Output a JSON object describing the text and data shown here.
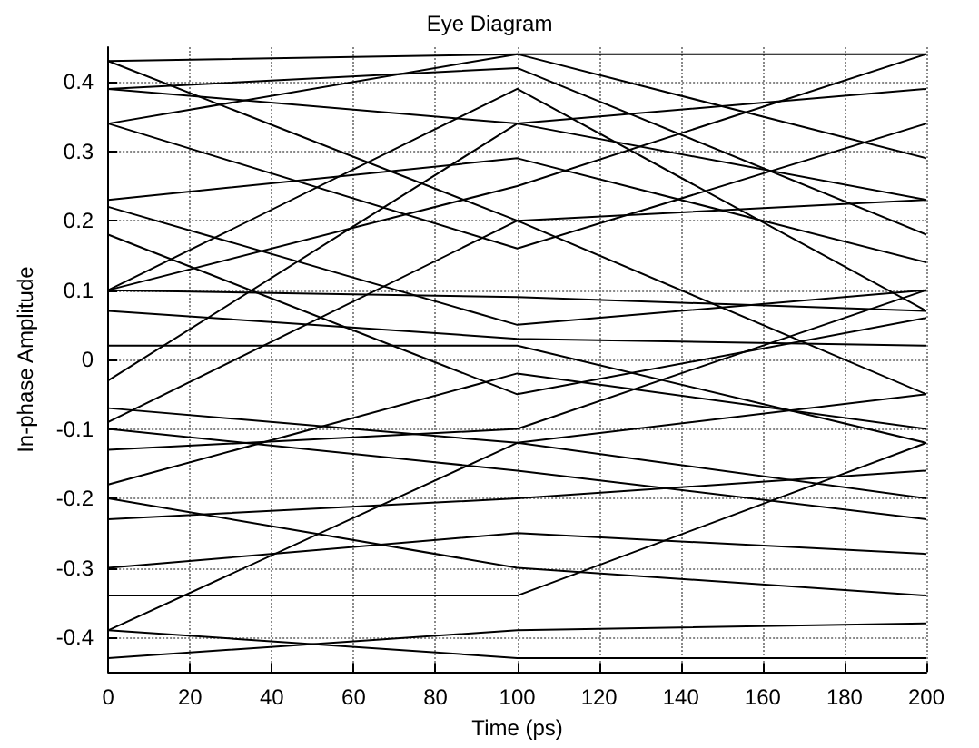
{
  "chart_data": {
    "type": "line",
    "title": "Eye Diagram",
    "xlabel": "Time (ps)",
    "ylabel": "In-phase Amplitude",
    "x": [
      0,
      100,
      200
    ],
    "xlim": [
      0,
      200
    ],
    "xticks": [
      0,
      20,
      40,
      60,
      80,
      100,
      120,
      140,
      160,
      180,
      200
    ],
    "ylim": [
      -0.45,
      0.45
    ],
    "yticks": [
      -0.4,
      -0.3,
      -0.2,
      -0.1,
      0,
      0.1,
      0.2,
      0.3,
      0.4
    ],
    "grid": true,
    "marker": "none",
    "line_style": "solid",
    "series": [
      {
        "color": "#000000",
        "values": [
          0.43,
          0.44,
          0.44
        ]
      },
      {
        "color": "#000000",
        "values": [
          0.43,
          0.2,
          0.23
        ]
      },
      {
        "color": "#000000",
        "values": [
          0.39,
          0.34,
          0.39
        ]
      },
      {
        "color": "#000000",
        "values": [
          0.39,
          0.42,
          0.18
        ]
      },
      {
        "color": "#000000",
        "values": [
          0.34,
          0.16,
          0.34
        ]
      },
      {
        "color": "#000000",
        "values": [
          0.34,
          0.44,
          0.29
        ]
      },
      {
        "color": "#000000",
        "values": [
          0.23,
          0.29,
          0.14
        ]
      },
      {
        "color": "#000000",
        "values": [
          0.22,
          0.05,
          0.1
        ]
      },
      {
        "color": "#000000",
        "values": [
          0.18,
          -0.05,
          0.06
        ]
      },
      {
        "color": "#000000",
        "values": [
          0.1,
          0.25,
          0.44
        ]
      },
      {
        "color": "#000000",
        "values": [
          0.1,
          0.39,
          0.07
        ]
      },
      {
        "color": "#000000",
        "values": [
          0.1,
          0.09,
          0.07
        ]
      },
      {
        "color": "#000000",
        "values": [
          0.07,
          0.03,
          0.02
        ]
      },
      {
        "color": "#000000",
        "values": [
          0.02,
          0.02,
          -0.12
        ]
      },
      {
        "color": "#000000",
        "values": [
          -0.03,
          0.34,
          0.23
        ]
      },
      {
        "color": "#000000",
        "values": [
          -0.07,
          -0.12,
          -0.2
        ]
      },
      {
        "color": "#000000",
        "values": [
          -0.09,
          0.2,
          -0.05
        ]
      },
      {
        "color": "#000000",
        "values": [
          -0.1,
          -0.16,
          -0.23
        ]
      },
      {
        "color": "#000000",
        "values": [
          -0.13,
          -0.1,
          0.1
        ]
      },
      {
        "color": "#000000",
        "values": [
          -0.18,
          -0.02,
          -0.1
        ]
      },
      {
        "color": "#000000",
        "values": [
          -0.2,
          -0.3,
          -0.34
        ]
      },
      {
        "color": "#000000",
        "values": [
          -0.23,
          -0.2,
          -0.16
        ]
      },
      {
        "color": "#000000",
        "values": [
          -0.3,
          -0.25,
          -0.28
        ]
      },
      {
        "color": "#000000",
        "values": [
          -0.34,
          -0.34,
          -0.12
        ]
      },
      {
        "color": "#000000",
        "values": [
          -0.39,
          -0.43,
          -0.43
        ]
      },
      {
        "color": "#000000",
        "values": [
          -0.39,
          -0.12,
          -0.05
        ]
      },
      {
        "color": "#000000",
        "values": [
          -0.43,
          -0.39,
          -0.38
        ]
      }
    ]
  }
}
